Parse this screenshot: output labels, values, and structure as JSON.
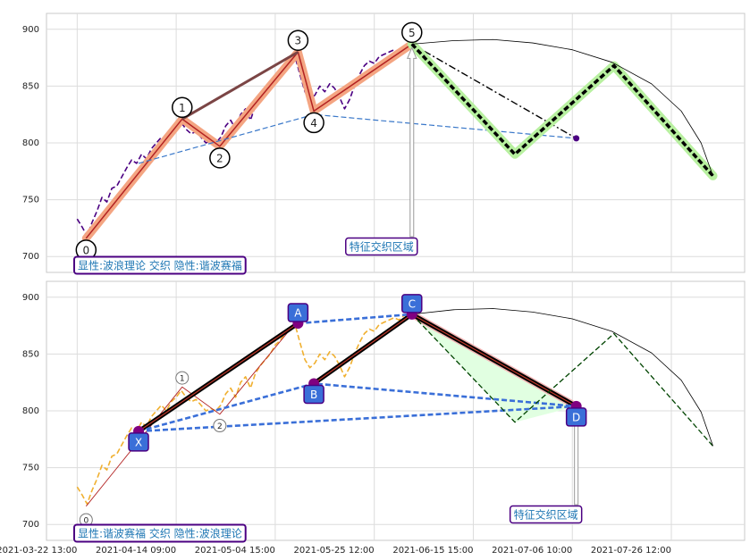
{
  "chart_data": [
    {
      "type": "line",
      "xlim": [
        -31,
        674
      ],
      "ylim": [
        686,
        914
      ],
      "xticks": [
        0,
        100,
        200,
        300,
        400,
        500,
        600
      ],
      "yticks": [
        700,
        750,
        800,
        850,
        900
      ],
      "grid": true,
      "series": [
        {
          "color": "#4b0082",
          "style": "dashed",
          "width": 1.6,
          "x": [
            0,
            5,
            10,
            15,
            20,
            25,
            30,
            35,
            40,
            45,
            50,
            55,
            60,
            65,
            70,
            75,
            80,
            85,
            90,
            95,
            100,
            105,
            110,
            115,
            120,
            125,
            130,
            135,
            140,
            145,
            150,
            155,
            160,
            165,
            170,
            175,
            180,
            185,
            190,
            195,
            200,
            205,
            210,
            215,
            220,
            225,
            230,
            235,
            240,
            245,
            250,
            255,
            260,
            265,
            270,
            275,
            280,
            285,
            290,
            295,
            300,
            305,
            310,
            315,
            320,
            325,
            330,
            335
          ],
          "values": [
            733,
            726,
            718,
            730,
            740,
            752,
            748,
            760,
            762,
            770,
            778,
            785,
            782,
            790,
            786,
            795,
            800,
            805,
            800,
            808,
            812,
            818,
            812,
            808,
            810,
            805,
            800,
            802,
            800,
            805,
            815,
            820,
            812,
            825,
            830,
            820,
            833,
            840,
            845,
            850,
            858,
            862,
            868,
            872,
            876,
            860,
            845,
            838,
            842,
            850,
            845,
            852,
            848,
            840,
            830,
            838,
            850,
            860,
            868,
            872,
            870,
            876,
            878,
            880,
            882,
            880,
            884,
            886
          ]
        },
        {
          "color": "#f4a582",
          "style": "solid",
          "width": 9,
          "x": [
            9,
            106,
            144,
            223,
            239,
            338
          ],
          "values": [
            716,
            821,
            797,
            880,
            828,
            887
          ]
        },
        {
          "color": "#b22222",
          "style": "solid",
          "width": 1.5,
          "x": [
            9,
            106,
            144,
            223,
            239,
            338
          ],
          "values": [
            716,
            821,
            797,
            880,
            828,
            887
          ]
        },
        {
          "color": "#7b4545",
          "style": "solid",
          "width": 3,
          "x": [
            106,
            223
          ],
          "values": [
            821,
            880
          ]
        },
        {
          "color": "#3a78c9",
          "style": "dashed",
          "width": 1.2,
          "x": [
            62,
            239,
            504
          ],
          "values": [
            782,
            825,
            804
          ]
        },
        {
          "color": "#000000",
          "style": "dashdot",
          "width": 1.4,
          "x": [
            338,
            504
          ],
          "values": [
            887,
            804
          ]
        },
        {
          "color": "#b8f0a0",
          "style": "solid",
          "width": 10,
          "x": [
            338,
            442,
            542,
            642
          ],
          "values": [
            887,
            790,
            868,
            771
          ]
        },
        {
          "color": "#000000",
          "style": "dashed",
          "width": 3.5,
          "x": [
            338,
            442,
            542,
            642
          ],
          "values": [
            887,
            790,
            868,
            771
          ]
        },
        {
          "color": "#000000",
          "style": "solid",
          "width": 0.8,
          "x": [
            338,
            380,
            420,
            460,
            500,
            540,
            580,
            610,
            630,
            642
          ],
          "values": [
            887,
            890,
            891,
            888,
            882,
            871,
            852,
            828,
            800,
            771
          ]
        },
        {
          "color": "#4b0082",
          "style": "dot",
          "width": 0,
          "x": [
            504
          ],
          "values": [
            804
          ]
        }
      ],
      "points": {
        "labels": [
          "0",
          "1",
          "2",
          "3",
          "4",
          "5"
        ],
        "x": [
          9,
          106,
          144,
          223,
          239,
          338
        ],
        "values": [
          716,
          821,
          797,
          880,
          828,
          887
        ]
      },
      "annotation": "特征交织区域",
      "caption": "显性:波浪理论 交织 隐性:谐波赛福"
    },
    {
      "type": "line",
      "xlim": [
        -31,
        674
      ],
      "ylim": [
        686,
        914
      ],
      "xticks": [
        {
          "value": 0,
          "label": "2021-03-22 13:00"
        },
        {
          "value": 100,
          "label": "2021-04-14 09:00"
        },
        {
          "value": 200,
          "label": "2021-05-04 15:00"
        },
        {
          "value": 300,
          "label": "2021-05-25 12:00"
        },
        {
          "value": 400,
          "label": "2021-06-15 15:00"
        },
        {
          "value": 500,
          "label": "2021-07-06 10:00"
        },
        {
          "value": 600,
          "label": "2021-07-26 12:00"
        }
      ],
      "yticks": [
        700,
        750,
        800,
        850,
        900
      ],
      "grid": true,
      "series": [
        {
          "color": "#e1ffe1",
          "style": "fill",
          "width": 0,
          "x": [
            338,
            442,
            504
          ],
          "values": [
            885,
            790,
            804
          ]
        },
        {
          "color": "#f0b030",
          "style": "dashed",
          "width": 1.6,
          "x": [
            0,
            5,
            10,
            15,
            20,
            25,
            30,
            35,
            40,
            45,
            50,
            55,
            60,
            65,
            70,
            75,
            80,
            85,
            90,
            95,
            100,
            105,
            110,
            115,
            120,
            125,
            130,
            135,
            140,
            145,
            150,
            155,
            160,
            165,
            170,
            175,
            180,
            185,
            190,
            195,
            200,
            205,
            210,
            215,
            220,
            225,
            230,
            235,
            240,
            245,
            250,
            255,
            260,
            265,
            270,
            275,
            280,
            285,
            290,
            295,
            300,
            305,
            310,
            315,
            320,
            325,
            330,
            335
          ],
          "values": [
            733,
            726,
            718,
            730,
            740,
            752,
            748,
            760,
            762,
            770,
            778,
            785,
            782,
            790,
            786,
            795,
            800,
            805,
            800,
            808,
            812,
            818,
            812,
            808,
            810,
            805,
            800,
            802,
            800,
            805,
            815,
            820,
            812,
            825,
            830,
            820,
            833,
            840,
            845,
            850,
            858,
            862,
            868,
            872,
            876,
            860,
            845,
            838,
            842,
            850,
            845,
            852,
            848,
            840,
            830,
            838,
            850,
            860,
            868,
            872,
            870,
            876,
            878,
            880,
            882,
            880,
            884,
            886
          ]
        },
        {
          "color": "#b22222",
          "style": "solid",
          "width": 0.9,
          "x": [
            9,
            106,
            144,
            223
          ],
          "values": [
            716,
            821,
            797,
            880
          ]
        },
        {
          "color": "#f4b6b6",
          "style": "solid",
          "width": 8,
          "x": [
            338,
            504
          ],
          "values": [
            885,
            804
          ]
        },
        {
          "color": "#000000",
          "style": "solid",
          "width": 5,
          "x": [
            62,
            223
          ],
          "values": [
            782,
            877
          ]
        },
        {
          "color": "#000000",
          "style": "solid",
          "width": 5,
          "x": [
            239,
            338,
            504
          ],
          "values": [
            824,
            885,
            804
          ]
        },
        {
          "color": "#c0392b",
          "style": "solid",
          "width": 1.2,
          "x": [
            62,
            223
          ],
          "values": [
            782,
            877
          ]
        },
        {
          "color": "#c0392b",
          "style": "solid",
          "width": 1.2,
          "x": [
            239,
            338,
            504
          ],
          "values": [
            824,
            885,
            804
          ]
        },
        {
          "color": "#3a6fd8",
          "style": "dashed",
          "width": 2.6,
          "x": [
            223,
            338
          ],
          "values": [
            877,
            885
          ]
        },
        {
          "color": "#3a6fd8",
          "style": "dashed",
          "width": 2.6,
          "x": [
            62,
            239,
            504
          ],
          "values": [
            782,
            824,
            804
          ]
        },
        {
          "color": "#3a6fd8",
          "style": "dashed",
          "width": 2.6,
          "x": [
            62,
            504
          ],
          "values": [
            782,
            804
          ]
        },
        {
          "color": "#004400",
          "style": "dashed",
          "width": 1.3,
          "x": [
            338,
            442,
            542,
            642
          ],
          "values": [
            885,
            790,
            868,
            769
          ]
        },
        {
          "color": "#000000",
          "style": "solid",
          "width": 0.8,
          "x": [
            338,
            380,
            420,
            460,
            500,
            540,
            580,
            610,
            630,
            642
          ],
          "values": [
            885,
            889,
            890,
            887,
            881,
            870,
            851,
            827,
            799,
            769
          ]
        }
      ],
      "points": {
        "labels": [
          "X",
          "A",
          "B",
          "C",
          "D"
        ],
        "x": [
          62,
          223,
          239,
          338,
          504
        ],
        "values": [
          782,
          877,
          824,
          885,
          804
        ]
      },
      "minor_points": {
        "labels": [
          "0",
          "1",
          "2"
        ],
        "x": [
          9,
          106,
          144
        ],
        "values": [
          704,
          829,
          787
        ]
      },
      "annotation": "特征交织区域",
      "caption": "显性:谐波赛福 交织 隐性:波浪理论"
    }
  ]
}
